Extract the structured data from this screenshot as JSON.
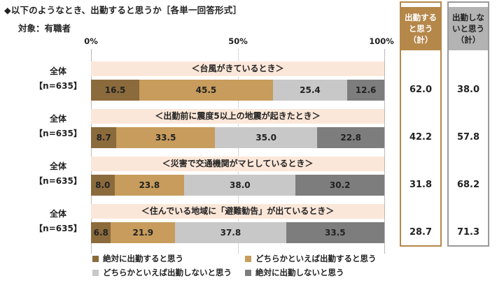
{
  "title": "◆以下のようなとき、出勤すると思うか［各単一回答形式］",
  "subtitle": "対象：有職者",
  "chart_data": {
    "type": "bar",
    "orientation": "horizontal",
    "stacked": true,
    "xlim": [
      0,
      100
    ],
    "ticks": [
      "0%",
      "50%",
      "100%"
    ],
    "categories": [
      "＜台風がきているとき＞",
      "＜出勤前に震度5以上の地震が起きたとき＞",
      "＜災害で交通機関がマヒしているとき＞",
      "＜住んでいる地域に「避難勧告」が出ているとき＞"
    ],
    "row_label": "全体",
    "row_n": "【n=635】",
    "series": [
      {
        "name": "絶対に出勤すると思う",
        "color": "#8b6a3c",
        "values": [
          16.5,
          8.7,
          8.0,
          6.8
        ]
      },
      {
        "name": "どちらかといえば出勤すると思う",
        "color": "#c79c5c",
        "values": [
          45.5,
          33.5,
          23.8,
          21.9
        ]
      },
      {
        "name": "どちらかといえば出勤しないと思う",
        "color": "#c8c8c8",
        "values": [
          25.4,
          35.0,
          38.0,
          37.8
        ]
      },
      {
        "name": "絶対に出勤しないと思う",
        "color": "#7d7d7d",
        "values": [
          12.6,
          22.8,
          30.2,
          33.5
        ]
      }
    ],
    "totals": {
      "go_header": [
        "出勤する",
        "と思う",
        "（計）"
      ],
      "nogo_header": [
        "出勤しな",
        "いと思う",
        "（計）"
      ],
      "go": [
        62.0,
        42.2,
        31.8,
        28.7
      ],
      "nogo": [
        38.0,
        57.8,
        68.2,
        71.3
      ]
    },
    "legend_position": "bottom",
    "grid": true
  }
}
